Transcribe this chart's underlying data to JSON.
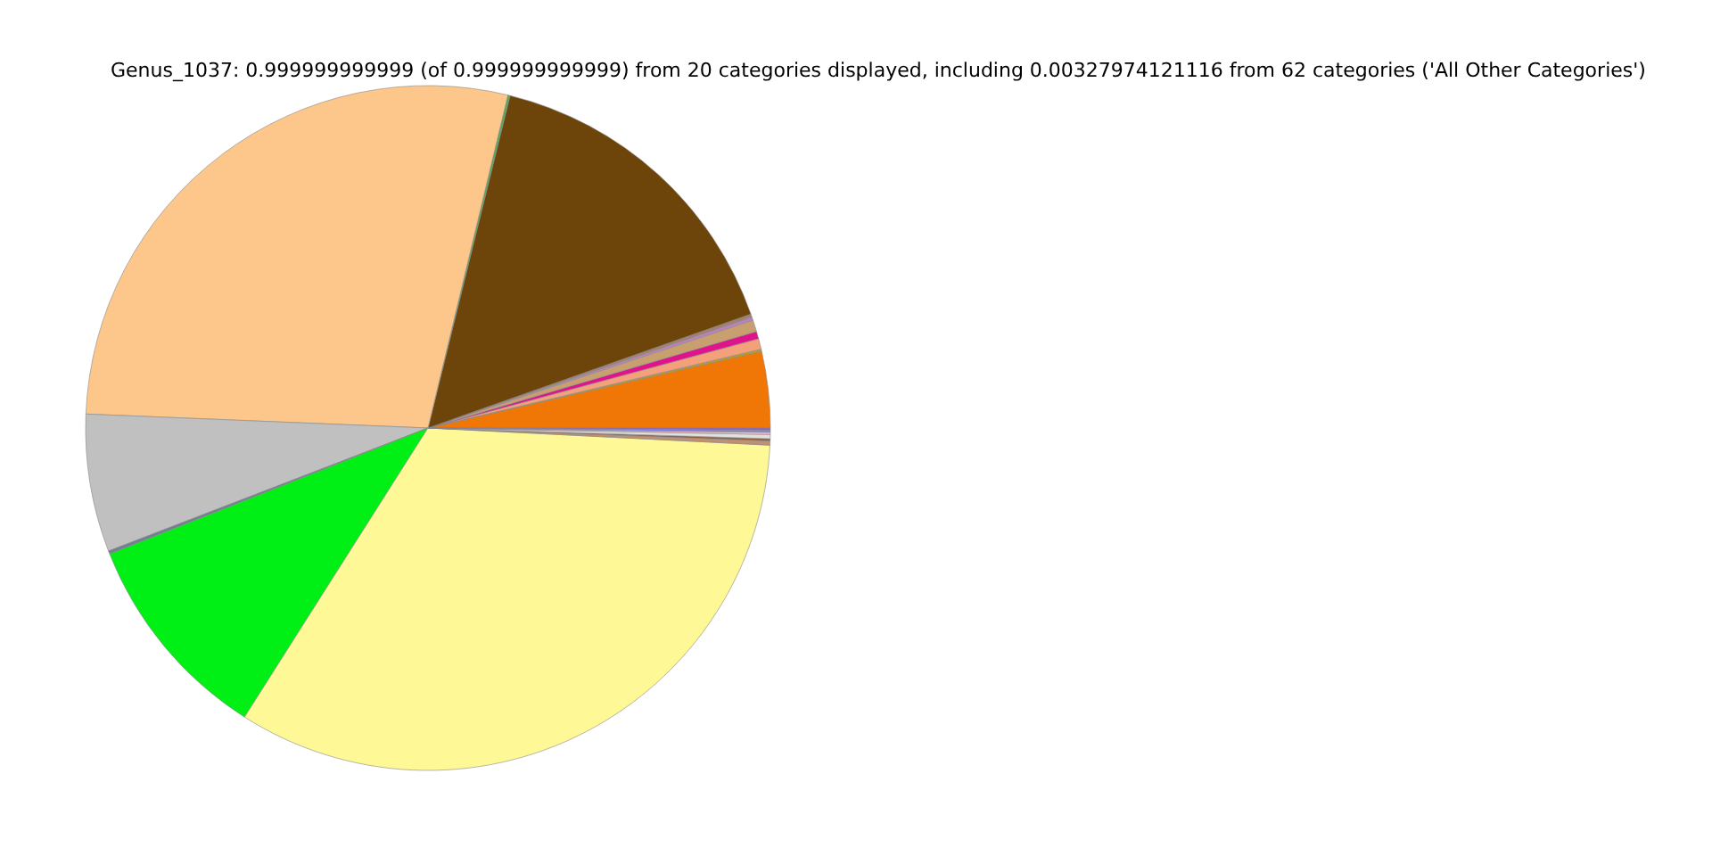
{
  "chart_data": {
    "type": "pie",
    "title": "Genus_1037: 0.999999999999 (of 0.999999999999) from 20 categories displayed, including 0.00327974121116 from 62 categories ('All Other Categories')",
    "categories": [
      null,
      null,
      null,
      null,
      null,
      null,
      null,
      null,
      null,
      null,
      null,
      null,
      null,
      null,
      null,
      null,
      null,
      null,
      null,
      null
    ],
    "values": [
      3.6,
      0.1,
      0.5,
      0.35,
      0.55,
      0.15,
      0.15,
      15.75,
      0.1,
      28.1,
      6.5,
      0.15,
      10.0,
      33.2,
      0.2,
      0.1,
      0.2,
      0.1,
      0.1,
      0.1
    ],
    "colors": [
      "#f07605",
      "#b8a020",
      "#f4a07a",
      "#e0138c",
      "#c8a070",
      "#c080c0",
      "#a08070",
      "#6d440a",
      "#4caf50",
      "#fdc68a",
      "#c0c0c0",
      "#708090",
      "#00f015",
      "#fef897",
      "#c09070",
      "#906040",
      "#e0e0e0",
      "#ffc0cb",
      "#8080ff",
      "#9060c0"
    ],
    "legend": false
  }
}
